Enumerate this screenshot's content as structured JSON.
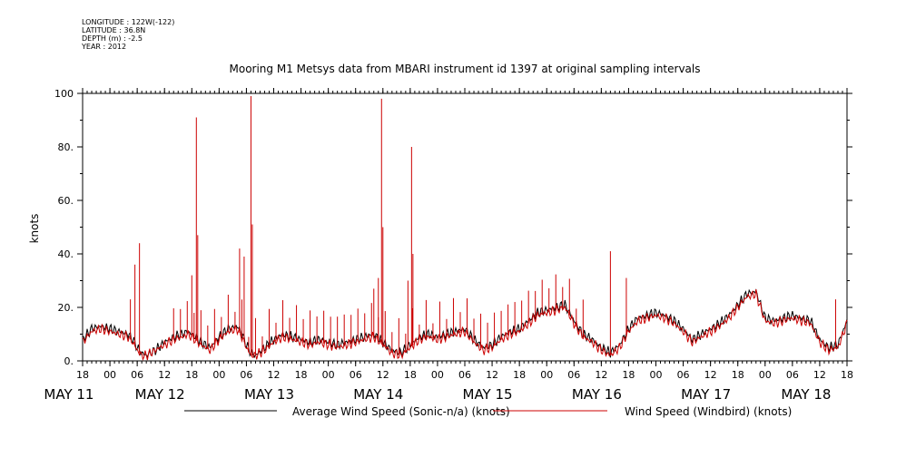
{
  "meta_lines": [
    "LONGITUDE : 122W(-122)",
    "LATITUDE : 36.8N",
    "DEPTH (m) : -2.5",
    "YEAR : 2012"
  ],
  "chart_data": {
    "type": "line",
    "title": "Mooring M1 Metsys data from MBARI instrument id 1397 at original sampling intervals",
    "ylabel": "knots",
    "xlabel": "",
    "ylim": [
      0,
      100
    ],
    "yticks": [
      0,
      20,
      40,
      60,
      80,
      100
    ],
    "ytick_labels": [
      "0.",
      "20.",
      "40.",
      "60.",
      "80.",
      "100"
    ],
    "xlim_hours": [
      0,
      168
    ],
    "x_unit": "hours since 18:00 May 11 2012",
    "x_hour_ticks": [
      0,
      6,
      12,
      18,
      24,
      30,
      36,
      42,
      48,
      54,
      60,
      66,
      72,
      78,
      84,
      90,
      96,
      102,
      108,
      114,
      120,
      126,
      132,
      138,
      144,
      150,
      156,
      162,
      168
    ],
    "x_hour_labels": [
      "18",
      "00",
      "06",
      "12",
      "18",
      "00",
      "06",
      "12",
      "18",
      "00",
      "06",
      "12",
      "18",
      "00",
      "06",
      "12",
      "18",
      "00",
      "06",
      "12",
      "18",
      "00",
      "06",
      "12",
      "18",
      "00",
      "06",
      "12",
      "18"
    ],
    "day_labels": [
      {
        "label": "MAY 11",
        "hour": -3
      },
      {
        "label": "MAY 12",
        "hour": 17
      },
      {
        "label": "MAY 13",
        "hour": 41
      },
      {
        "label": "MAY 14",
        "hour": 65
      },
      {
        "label": "MAY 15",
        "hour": 89
      },
      {
        "label": "MAY 16",
        "hour": 113
      },
      {
        "label": "MAY 17",
        "hour": 137
      },
      {
        "label": "MAY 18",
        "hour": 159
      }
    ],
    "grid": false,
    "legend_position": "bottom",
    "series": [
      {
        "name": "Average Wind Speed (Sonic-n/a) (knots)",
        "color": "#000000",
        "x": [
          0,
          2,
          4,
          6,
          8,
          10,
          11,
          12,
          13,
          14,
          16,
          18,
          20,
          22,
          23,
          24,
          26,
          28,
          30,
          32,
          34,
          35,
          36,
          37,
          38,
          40,
          42,
          44,
          46,
          48,
          50,
          52,
          54,
          56,
          58,
          60,
          62,
          64,
          66,
          68,
          70,
          72,
          74,
          76,
          78,
          80,
          82,
          84,
          86,
          88,
          90,
          92,
          94,
          96,
          98,
          100,
          102,
          104,
          106,
          108,
          110,
          112,
          114,
          116,
          118,
          120,
          122,
          124,
          126,
          128,
          130,
          132,
          134,
          136,
          138,
          140,
          142,
          144,
          146,
          148,
          150,
          152,
          154,
          156,
          158,
          160,
          162,
          164,
          166,
          168
        ],
        "y": [
          8,
          12,
          13,
          12,
          11,
          10,
          8,
          5,
          3,
          2,
          4,
          7,
          9,
          10,
          11,
          10,
          7,
          5,
          9,
          12,
          13,
          10,
          6,
          3,
          2,
          5,
          8,
          10,
          9,
          8,
          7,
          8,
          7,
          6,
          7,
          8,
          9,
          10,
          7,
          4,
          3,
          6,
          9,
          10,
          9,
          10,
          11,
          12,
          8,
          5,
          6,
          9,
          11,
          12,
          15,
          18,
          19,
          20,
          21,
          15,
          10,
          8,
          5,
          3,
          6,
          12,
          16,
          17,
          18,
          17,
          15,
          12,
          8,
          10,
          12,
          14,
          17,
          21,
          25,
          26,
          16,
          15,
          16,
          17,
          16,
          15,
          8,
          5,
          6,
          15
        ],
        "interpolated": true
      },
      {
        "name": "Wind Speed (Windbird) (knots)",
        "color": "#cc0000",
        "x": [
          0,
          2,
          4,
          6,
          8,
          10,
          11,
          12,
          13,
          14,
          16,
          18,
          20,
          22,
          23,
          24,
          26,
          28,
          30,
          32,
          34,
          35,
          36,
          37,
          38,
          40,
          42,
          44,
          46,
          48,
          50,
          52,
          54,
          56,
          58,
          60,
          62,
          64,
          66,
          68,
          70,
          72,
          74,
          76,
          78,
          80,
          82,
          84,
          86,
          88,
          90,
          92,
          94,
          96,
          98,
          100,
          102,
          104,
          106,
          108,
          110,
          112,
          114,
          116,
          118,
          120,
          122,
          124,
          126,
          128,
          130,
          132,
          134,
          136,
          138,
          140,
          142,
          144,
          146,
          148,
          150,
          152,
          154,
          156,
          158,
          160,
          162,
          164,
          166,
          168
        ],
        "y": [
          7,
          11,
          12,
          11,
          10,
          9,
          7,
          4,
          2,
          2,
          4,
          6,
          8,
          9,
          10,
          9,
          6,
          4,
          8,
          11,
          12,
          9,
          5,
          2,
          2,
          4,
          7,
          9,
          8,
          7,
          6,
          7,
          6,
          5,
          6,
          7,
          8,
          9,
          6,
          3,
          2,
          5,
          8,
          9,
          8,
          9,
          10,
          11,
          7,
          4,
          5,
          8,
          10,
          11,
          14,
          17,
          18,
          19,
          20,
          14,
          9,
          7,
          4,
          2,
          5,
          11,
          15,
          16,
          17,
          16,
          14,
          11,
          7,
          9,
          11,
          13,
          16,
          20,
          24,
          25,
          15,
          14,
          15,
          16,
          15,
          14,
          7,
          4,
          5,
          14
        ],
        "interpolated": true,
        "spikes": [
          [
            10.5,
            23
          ],
          [
            11.5,
            36
          ],
          [
            12.5,
            44
          ],
          [
            24.0,
            32
          ],
          [
            25.0,
            91
          ],
          [
            25.3,
            47
          ],
          [
            34.5,
            42
          ],
          [
            35.5,
            39
          ],
          [
            37.0,
            99
          ],
          [
            37.3,
            51
          ],
          [
            64.0,
            27
          ],
          [
            65.0,
            31
          ],
          [
            65.7,
            98
          ],
          [
            66.0,
            50
          ],
          [
            71.5,
            30
          ],
          [
            72.3,
            80
          ],
          [
            72.6,
            40
          ],
          [
            116.0,
            41
          ],
          [
            119.5,
            31
          ],
          [
            165.5,
            23
          ]
        ]
      }
    ]
  }
}
